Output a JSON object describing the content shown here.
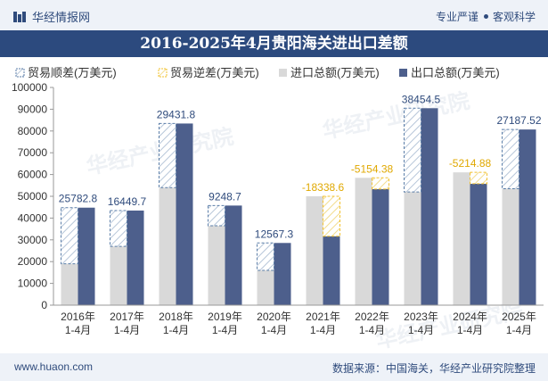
{
  "header": {
    "brand": "华经情报网",
    "tagline_left": "专业严谨",
    "tagline_right": "客观科学"
  },
  "footer": {
    "site": "www.huaon.com",
    "source": "数据来源：中国海关，华经产业研究院整理"
  },
  "watermark": "华经产业研究院",
  "colors": {
    "import": "#d9d9d9",
    "export": "#4d5f8c",
    "surplus_stroke": "#5b7ea8",
    "deficit_stroke": "#f2c12e",
    "title_band": "#2c4a7e"
  },
  "chart_data": {
    "type": "bar",
    "title": "2016-2025年4月贵阳海关进出口差额",
    "categories": [
      "2016年\n1-4月",
      "2017年\n1-4月",
      "2018年\n1-4月",
      "2019年\n1-4月",
      "2020年\n1-4月",
      "2021年\n1-4月",
      "2022年\n1-4月",
      "2023年\n1-4月",
      "2024年\n1-4月",
      "2025年\n1-4月"
    ],
    "series": [
      {
        "name": "贸易顺差(万美元)",
        "values": [
          25782.8,
          16449.7,
          29431.8,
          9248.7,
          12567.3,
          null,
          null,
          38454.5,
          null,
          27187.52
        ]
      },
      {
        "name": "贸易逆差(万美元)",
        "values": [
          null,
          null,
          null,
          null,
          null,
          -18338.6,
          -5154.38,
          null,
          -5214.88,
          null
        ]
      },
      {
        "name": "进口总额(万美元)",
        "values": [
          19000,
          27000,
          54000,
          36500,
          16000,
          50000,
          58500,
          52000,
          61000,
          53500
        ]
      },
      {
        "name": "出口总额(万美元)",
        "values": [
          44782.8,
          43449.7,
          83431.8,
          45748.7,
          28567.3,
          31661.4,
          53345.62,
          90454.5,
          55785.12,
          80687.52
        ]
      }
    ],
    "data_labels": [
      "25782.8",
      "16449.7",
      "29431.8",
      "9248.7",
      "12567.3",
      "-18338.6",
      "-5154.38",
      "38454.5",
      "-5214.88",
      "27187.52"
    ],
    "ylim": [
      0,
      100000
    ],
    "yticks": [
      0,
      10000,
      20000,
      30000,
      40000,
      50000,
      60000,
      70000,
      80000,
      90000,
      100000
    ],
    "legend_position": "top-left",
    "grid": false
  }
}
